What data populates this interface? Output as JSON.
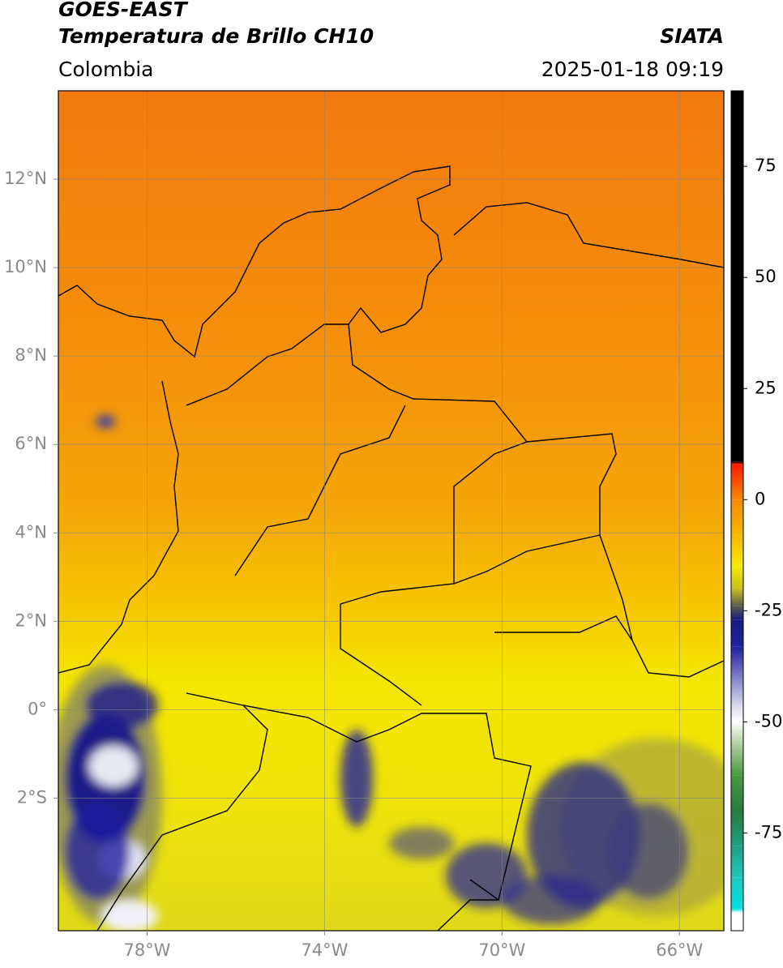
{
  "header": {
    "title": "GOES-EAST",
    "subtitle": "Temperatura de Brillo CH10",
    "source": "SIATA",
    "region": "Colombia",
    "datetime": "2025-01-18 09:19"
  },
  "map": {
    "xlim": [
      -80,
      -65
    ],
    "ylim": [
      -5,
      14
    ],
    "xticks": [
      {
        "value": -78,
        "label": "78°W"
      },
      {
        "value": -74,
        "label": "74°W"
      },
      {
        "value": -70,
        "label": "70°W"
      },
      {
        "value": -66,
        "label": "66°W"
      }
    ],
    "yticks": [
      {
        "value": 12,
        "label": "12°N"
      },
      {
        "value": 10,
        "label": "10°N"
      },
      {
        "value": 8,
        "label": "8°N"
      },
      {
        "value": 6,
        "label": "6°N"
      },
      {
        "value": 4,
        "label": "4°N"
      },
      {
        "value": 2,
        "label": "2°N"
      },
      {
        "value": 0,
        "label": "0°"
      },
      {
        "value": -2,
        "label": "2°S"
      }
    ],
    "grid": true
  },
  "colorbar": {
    "lim": [
      -97,
      92
    ],
    "ticks": [
      75,
      50,
      25,
      0,
      -25,
      -50,
      -75
    ],
    "stops": [
      {
        "value": 92,
        "color": "#000000"
      },
      {
        "value": 8.5,
        "color": "#000000"
      },
      {
        "value": 8,
        "color": "#ff1a00"
      },
      {
        "value": 0,
        "color": "#f58a00"
      },
      {
        "value": -8,
        "color": "#f5b800"
      },
      {
        "value": -15,
        "color": "#f8ea00"
      },
      {
        "value": -20,
        "color": "#c8c020"
      },
      {
        "value": -24,
        "color": "#5a5a50"
      },
      {
        "value": -27,
        "color": "#1a1a80"
      },
      {
        "value": -33,
        "color": "#2020a0"
      },
      {
        "value": -40,
        "color": "#8080c8"
      },
      {
        "value": -47,
        "color": "#e0e0f0"
      },
      {
        "value": -50,
        "color": "#ffffff"
      },
      {
        "value": -55,
        "color": "#b0d0a0"
      },
      {
        "value": -62,
        "color": "#4a9a40"
      },
      {
        "value": -70,
        "color": "#2a7a40"
      },
      {
        "value": -78,
        "color": "#20a080"
      },
      {
        "value": -85,
        "color": "#20c8c0"
      },
      {
        "value": -92,
        "color": "#00e0e0"
      },
      {
        "value": -93,
        "color": "#ffffff"
      },
      {
        "value": -97,
        "color": "#ffffff"
      }
    ]
  }
}
